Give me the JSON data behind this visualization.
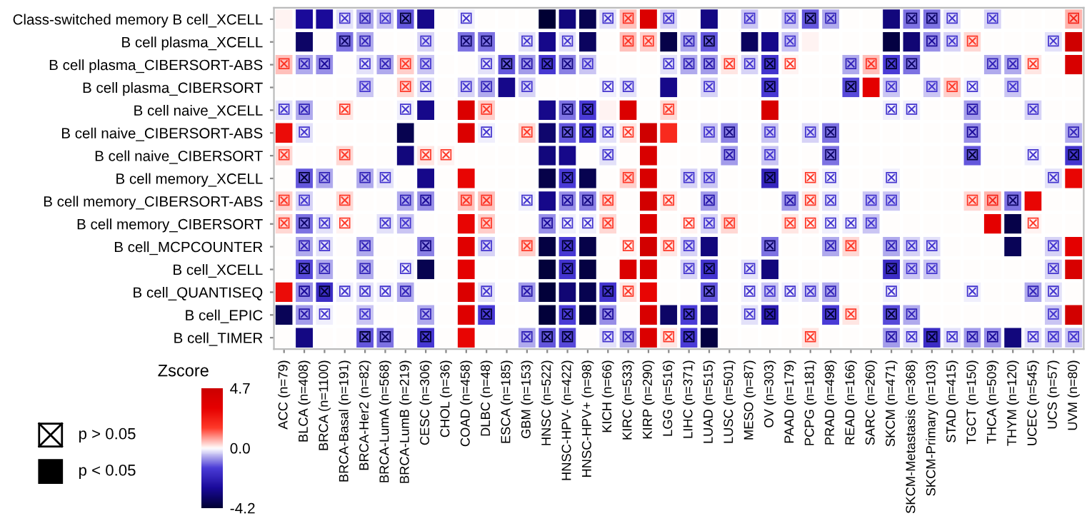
{
  "chart_data": {
    "type": "heatmap",
    "categories": [
      "ACC (n=79)",
      "BLCA (n=408)",
      "BRCA (n=1100)",
      "BRCA-Basal (n=191)",
      "BRCA-Her2 (n=82)",
      "BRCA-LumA (n=568)",
      "BRCA-LumB (n=219)",
      "CESC (n=306)",
      "CHOL (n=36)",
      "COAD (n=458)",
      "DLBC (n=48)",
      "ESCA (n=185)",
      "GBM (n=153)",
      "HNSC (n=522)",
      "HNSC-HPV- (n=422)",
      "HNSC-HPV+ (n=98)",
      "KICH (n=66)",
      "KIRC (n=533)",
      "KIRP (n=290)",
      "LGG (n=516)",
      "LIHC (n=371)",
      "LUAD (n=515)",
      "LUSC (n=501)",
      "MESO (n=87)",
      "OV (n=303)",
      "PAAD (n=179)",
      "PCPG (n=181)",
      "PRAD (n=498)",
      "READ (n=166)",
      "SARC (n=260)",
      "SKCM (n=471)",
      "SKCM-Metastasis (n=368)",
      "SKCM-Primary (n=103)",
      "STAD (n=415)",
      "TGCT (n=150)",
      "THCA (n=509)",
      "THYM (n=120)",
      "UCEC (n=545)",
      "UCS (n=57)",
      "UVM (n=80)"
    ],
    "y_categories": [
      "Class-switched memory B cell_XCELL",
      "B cell plasma_XCELL",
      "B cell plasma_CIBERSORT-ABS",
      "B cell plasma_CIBERSORT",
      "B cell naive_XCELL",
      "B cell naive_CIBERSORT-ABS",
      "B cell naive_CIBERSORT",
      "B cell memory_XCELL",
      "B cell memory_CIBERSORT-ABS",
      "B cell memory_CIBERSORT",
      "B cell_MCPCOUNTER",
      "B cell_XCELL",
      "B cell_QUANTISEQ",
      "B cell_EPIC",
      "B cell_TIMER"
    ],
    "cells": [
      [
        0.1,
        -2.8,
        -2.8,
        -0.2,
        -0.6,
        -0.4,
        -1.2,
        -3.0,
        0,
        -0.1,
        0,
        0,
        0,
        -4.2,
        -3.2,
        -3.8,
        -0.2,
        0.5,
        3.8,
        -0.3,
        0,
        -3.1,
        0,
        -0.4,
        0,
        -0.4,
        -1.2,
        -0.6,
        0,
        0,
        -3.2,
        -1.0,
        -1.0,
        -0.2,
        0,
        -0.3,
        0,
        0,
        0,
        0.6
      ],
      [
        0,
        -3.5,
        0,
        -1.0,
        -0.6,
        0,
        0,
        -0.3,
        0,
        -1.0,
        -1.0,
        0,
        -0.2,
        -3.0,
        -0.2,
        -3.6,
        0,
        0.5,
        0.4,
        -3.9,
        -0.6,
        -1.2,
        0,
        -3.6,
        -3.0,
        -0.4,
        0.1,
        0,
        0,
        0,
        -4.0,
        -3.3,
        -0.8,
        -0.3,
        0.3,
        0,
        0,
        0,
        -0.2,
        4.5
      ],
      [
        0.5,
        -0.6,
        -0.8,
        0,
        -0.2,
        -0.6,
        0.4,
        -0.4,
        0,
        0,
        -0.2,
        -1.2,
        -0.7,
        -1.5,
        -0.9,
        -0.4,
        0,
        0,
        0,
        -0.2,
        -0.6,
        -0.7,
        0.2,
        -0.3,
        -1.6,
        0.1,
        0,
        0,
        -0.6,
        0.5,
        -1.4,
        -1.0,
        0,
        0,
        0,
        -0.6,
        -0.6,
        0.2,
        0,
        4.0
      ],
      [
        0,
        0,
        0,
        0,
        -0.4,
        0,
        0.3,
        -0.2,
        0,
        -0.3,
        -0.6,
        -3.0,
        -0.3,
        0,
        0,
        0,
        -0.1,
        -0.2,
        0,
        -3.0,
        0,
        -0.3,
        0,
        0,
        -1.5,
        0,
        0,
        0,
        -1.3,
        3.2,
        -0.4,
        0,
        -0.4,
        0.4,
        -0.1,
        0,
        -0.4,
        0,
        0,
        0
      ],
      [
        -0.2,
        -0.6,
        0,
        0.2,
        0,
        0,
        -0.1,
        -3.0,
        0,
        3.8,
        0.4,
        0,
        0,
        -3.0,
        -1.0,
        -1.4,
        0.1,
        3.8,
        0,
        0.3,
        0,
        0,
        0,
        0,
        4.0,
        0,
        0,
        0,
        0,
        0,
        -0.1,
        -0.1,
        0,
        0,
        -0.7,
        0,
        0,
        -0.3,
        0,
        0
      ],
      [
        2.8,
        -0.2,
        0,
        0,
        0,
        0,
        -3.8,
        0,
        0,
        3.8,
        -0.1,
        0,
        0.3,
        -3.4,
        -1.2,
        -1.5,
        -0.2,
        0.2,
        4.5,
        2.0,
        0,
        -0.4,
        -0.9,
        0,
        -0.4,
        0,
        -0.3,
        -1.0,
        0,
        0,
        0,
        0,
        0,
        0,
        -0.8,
        0,
        0,
        0,
        0,
        -0.6
      ],
      [
        0.3,
        0,
        0,
        0.3,
        0,
        0,
        -3.2,
        0.2,
        0.1,
        0,
        0,
        0,
        0,
        -3.2,
        -3.0,
        0,
        -0.2,
        0,
        3.9,
        0,
        0,
        0,
        -0.7,
        0,
        -0.4,
        0,
        0,
        -1.0,
        0,
        0,
        0,
        0,
        0,
        0,
        -1.2,
        0,
        0,
        -0.1,
        0,
        -1.6
      ],
      [
        0,
        -1.2,
        -0.6,
        0,
        -0.6,
        -0.2,
        0,
        -3.0,
        0,
        3.0,
        0,
        0,
        0,
        -3.9,
        -1.4,
        -3.8,
        0,
        0.4,
        4.0,
        0,
        -0.3,
        -0.4,
        0,
        0,
        -2.0,
        0,
        0.1,
        -0.1,
        0,
        0,
        -0.1,
        0,
        0,
        0,
        0,
        0,
        0,
        0,
        -0.2,
        3.0
      ],
      [
        0.4,
        -0.3,
        0,
        0.3,
        0,
        0,
        -0.6,
        -0.8,
        0,
        0.5,
        0.5,
        0,
        -0.1,
        -3.0,
        -0.8,
        -0.9,
        0.3,
        0,
        4.3,
        0.2,
        0,
        -0.7,
        0,
        0,
        0,
        -0.7,
        0.2,
        -0.2,
        0,
        -0.4,
        -0.4,
        0,
        0,
        0,
        0.3,
        0.6,
        -1.0,
        3.0,
        0,
        0
      ],
      [
        0.3,
        -1.0,
        -0.2,
        0.1,
        0,
        -0.2,
        -0.4,
        0,
        0,
        3.0,
        0.4,
        0,
        0,
        -0.8,
        -0.1,
        -0.1,
        0.3,
        0,
        3.8,
        0,
        0.1,
        -0.3,
        0.3,
        0,
        0,
        0.2,
        0.1,
        -0.1,
        -0.1,
        -0.4,
        0,
        0,
        0,
        0,
        0,
        3.2,
        -3.9,
        0.1,
        0,
        0
      ],
      [
        0,
        -0.6,
        -0.2,
        0,
        -0.6,
        0,
        0,
        -0.9,
        0,
        3.5,
        -0.3,
        0,
        0.4,
        -4.0,
        -1.5,
        -3.9,
        0,
        0.1,
        4.3,
        0.2,
        -0.3,
        -3.2,
        0,
        0,
        -1.0,
        0,
        0,
        -0.6,
        0.3,
        0,
        -0.6,
        -0.3,
        -0.2,
        0,
        0,
        0,
        -3.7,
        0,
        -0.3,
        3.2
      ],
      [
        0,
        -1.3,
        -0.6,
        0,
        -0.6,
        0,
        -0.1,
        -3.8,
        0,
        3.2,
        0,
        0,
        0,
        -4.1,
        -1.6,
        -4.0,
        0,
        3.8,
        4.0,
        0,
        -0.3,
        -1.6,
        0,
        -0.2,
        -3.2,
        0,
        0,
        0,
        0,
        0,
        -1.8,
        -0.4,
        -0.4,
        0,
        0,
        0,
        0,
        0,
        -0.3,
        4.0
      ],
      [
        2.8,
        -0.8,
        -1.8,
        -0.1,
        -0.2,
        -0.1,
        -0.6,
        0,
        0,
        3.8,
        -0.2,
        0,
        -0.7,
        -4.1,
        -3.3,
        -3.8,
        -1.6,
        0.2,
        3.0,
        0,
        0,
        -1.2,
        0,
        -0.1,
        -0.4,
        -0.1,
        -0.3,
        -0.6,
        0,
        0,
        -0.1,
        0,
        0,
        0,
        -0.1,
        0,
        0,
        -0.6,
        -0.2,
        0
      ],
      [
        -3.7,
        -0.7,
        -0.1,
        0,
        -0.4,
        0,
        0,
        -0.6,
        0,
        3.6,
        -1.4,
        0,
        0,
        -4.1,
        -1.4,
        -4.0,
        -0.8,
        0,
        4.0,
        -3.5,
        -1.4,
        -3.4,
        0,
        -0.2,
        -2.2,
        0,
        0,
        -1.4,
        0.2,
        0,
        -1.3,
        -0.6,
        0,
        0,
        0,
        0,
        0,
        0,
        -0.4,
        4.3
      ],
      [
        0,
        -3.1,
        0,
        0,
        -1.2,
        -1.0,
        0,
        -1.5,
        0,
        3.0,
        0,
        0,
        -0.6,
        -1.2,
        -1.3,
        0,
        -0.2,
        -0.6,
        3.8,
        0.2,
        -1.4,
        -4.0,
        0,
        0,
        0,
        0,
        0.2,
        0,
        0,
        0,
        -0.7,
        -0.2,
        -1.8,
        -0.2,
        -0.7,
        -0.8,
        -3.2,
        -0.2,
        -0.4,
        -0.4
      ]
    ],
    "cell_labels": [
      [
        null,
        null,
        null,
        "⊠",
        "⊠",
        "⊠",
        "⊠",
        null,
        null,
        "⊠",
        null,
        null,
        null,
        null,
        null,
        null,
        "⊠",
        "⊠",
        null,
        "⊠",
        null,
        null,
        null,
        "⊠",
        null,
        "⊠",
        "⊠",
        "⊠",
        null,
        null,
        null,
        "⊠",
        "⊠",
        "⊠",
        null,
        "⊠",
        null,
        null,
        null,
        "⊠"
      ],
      [
        null,
        null,
        null,
        "⊠",
        "⊠",
        null,
        null,
        "⊠",
        null,
        "⊠",
        "⊠",
        null,
        "⊠",
        null,
        "⊠",
        null,
        null,
        "⊠",
        "⊠",
        null,
        "⊠",
        "⊠",
        null,
        null,
        null,
        "⊠",
        null,
        null,
        null,
        null,
        null,
        null,
        "⊠",
        "⊠",
        "⊠",
        null,
        null,
        null,
        "⊠",
        null
      ],
      [
        "⊠",
        "⊠",
        "⊠",
        null,
        "⊠",
        "⊠",
        "⊠",
        "⊠",
        null,
        null,
        "⊠",
        "⊠",
        "⊠",
        "⊠",
        "⊠",
        "⊠",
        null,
        null,
        null,
        "⊠",
        "⊠",
        "⊠",
        "⊠",
        "⊠",
        "⊠",
        "⊠",
        null,
        null,
        "⊠",
        "⊠",
        "⊠",
        "⊠",
        null,
        null,
        null,
        "⊠",
        "⊠",
        "⊠",
        null,
        null
      ],
      [
        null,
        null,
        null,
        null,
        "⊠",
        null,
        "⊠",
        "⊠",
        null,
        "⊠",
        "⊠",
        null,
        "⊠",
        null,
        null,
        null,
        "⊠",
        "⊠",
        null,
        null,
        null,
        "⊠",
        null,
        null,
        "⊠",
        null,
        null,
        null,
        "⊠",
        null,
        "⊠",
        null,
        "⊠",
        "⊠",
        "⊠",
        null,
        "⊠",
        null,
        null,
        null
      ],
      [
        "⊠",
        "⊠",
        null,
        "⊠",
        null,
        null,
        "⊠",
        null,
        null,
        null,
        "⊠",
        null,
        null,
        null,
        "⊠",
        "⊠",
        null,
        null,
        null,
        "⊠",
        null,
        null,
        null,
        null,
        null,
        null,
        null,
        null,
        null,
        null,
        "⊠",
        "⊠",
        null,
        null,
        "⊠",
        null,
        null,
        "⊠",
        null,
        null
      ],
      [
        null,
        "⊠",
        null,
        null,
        null,
        null,
        null,
        null,
        null,
        null,
        "⊠",
        null,
        "⊠",
        null,
        "⊠",
        "⊠",
        "⊠",
        "⊠",
        null,
        null,
        null,
        "⊠",
        "⊠",
        null,
        "⊠",
        null,
        "⊠",
        "⊠",
        null,
        null,
        null,
        null,
        null,
        null,
        "⊠",
        null,
        null,
        null,
        null,
        "⊠"
      ],
      [
        "⊠",
        null,
        null,
        "⊠",
        null,
        null,
        null,
        "⊠",
        "⊠",
        null,
        null,
        null,
        null,
        null,
        null,
        null,
        "⊠",
        null,
        null,
        null,
        null,
        null,
        "⊠",
        null,
        "⊠",
        null,
        null,
        "⊠",
        null,
        null,
        null,
        null,
        null,
        null,
        "⊠",
        null,
        null,
        "⊠",
        null,
        "⊠"
      ],
      [
        null,
        "⊠",
        "⊠",
        null,
        "⊠",
        "⊠",
        null,
        null,
        null,
        null,
        null,
        null,
        null,
        null,
        "⊠",
        null,
        null,
        "⊠",
        null,
        null,
        "⊠",
        "⊠",
        null,
        null,
        "⊠",
        null,
        "⊠",
        "⊠",
        null,
        null,
        "⊠",
        null,
        null,
        null,
        null,
        null,
        null,
        null,
        "⊠",
        null
      ],
      [
        "⊠",
        "⊠",
        null,
        "⊠",
        null,
        null,
        "⊠",
        "⊠",
        null,
        "⊠",
        "⊠",
        null,
        "⊠",
        null,
        "⊠",
        "⊠",
        "⊠",
        null,
        null,
        "⊠",
        null,
        "⊠",
        null,
        null,
        null,
        "⊠",
        "⊠",
        "⊠",
        null,
        "⊠",
        "⊠",
        null,
        null,
        null,
        "⊠",
        "⊠",
        "⊠",
        null,
        null,
        null
      ],
      [
        "⊠",
        "⊠",
        "⊠",
        "⊠",
        null,
        "⊠",
        "⊠",
        null,
        null,
        null,
        "⊠",
        null,
        null,
        "⊠",
        "⊠",
        "⊠",
        "⊠",
        null,
        null,
        null,
        "⊠",
        "⊠",
        "⊠",
        null,
        null,
        "⊠",
        "⊠",
        "⊠",
        "⊠",
        "⊠",
        null,
        null,
        null,
        null,
        null,
        null,
        null,
        "⊠",
        null,
        null
      ],
      [
        null,
        "⊠",
        "⊠",
        null,
        "⊠",
        null,
        null,
        "⊠",
        null,
        null,
        "⊠",
        null,
        "⊠",
        null,
        "⊠",
        null,
        null,
        "⊠",
        null,
        "⊠",
        "⊠",
        null,
        null,
        null,
        "⊠",
        null,
        null,
        "⊠",
        "⊠",
        null,
        "⊠",
        "⊠",
        "⊠",
        null,
        null,
        null,
        null,
        null,
        "⊠",
        null
      ],
      [
        null,
        "⊠",
        "⊠",
        null,
        "⊠",
        null,
        "⊠",
        null,
        null,
        null,
        null,
        null,
        null,
        null,
        "⊠",
        null,
        null,
        null,
        null,
        null,
        "⊠",
        "⊠",
        null,
        "⊠",
        null,
        null,
        null,
        null,
        null,
        null,
        "⊠",
        "⊠",
        "⊠",
        null,
        null,
        null,
        null,
        null,
        "⊠",
        null
      ],
      [
        null,
        "⊠",
        "⊠",
        "⊠",
        "⊠",
        "⊠",
        "⊠",
        null,
        null,
        null,
        "⊠",
        null,
        "⊠",
        null,
        null,
        null,
        "⊠",
        "⊠",
        null,
        null,
        null,
        "⊠",
        null,
        "⊠",
        "⊠",
        "⊠",
        "⊠",
        "⊠",
        null,
        null,
        "⊠",
        null,
        null,
        null,
        "⊠",
        null,
        null,
        "⊠",
        "⊠",
        null
      ],
      [
        null,
        "⊠",
        "⊠",
        null,
        "⊠",
        null,
        null,
        "⊠",
        null,
        null,
        "⊠",
        null,
        null,
        null,
        "⊠",
        null,
        "⊠",
        null,
        null,
        null,
        "⊠",
        null,
        null,
        "⊠",
        "⊠",
        null,
        null,
        "⊠",
        "⊠",
        null,
        "⊠",
        "⊠",
        null,
        null,
        null,
        null,
        null,
        null,
        "⊠",
        null
      ],
      [
        null,
        null,
        null,
        null,
        "⊠",
        "⊠",
        null,
        "⊠",
        null,
        null,
        null,
        null,
        "⊠",
        "⊠",
        "⊠",
        null,
        "⊠",
        "⊠",
        null,
        "⊠",
        "⊠",
        null,
        null,
        null,
        null,
        null,
        "⊠",
        null,
        null,
        null,
        "⊠",
        "⊠",
        "⊠",
        "⊠",
        "⊠",
        "⊠",
        null,
        "⊠",
        "⊠",
        "⊠"
      ]
    ],
    "clabel": "Zscore",
    "clim": [
      -4.2,
      4.7
    ],
    "cticks": [
      {
        "value": 4.7,
        "label": "4.7"
      },
      {
        "value": 0.0,
        "label": "0.0"
      },
      {
        "value": -4.2,
        "label": "-4.2"
      }
    ],
    "annotations": [
      "p > 0.05",
      "p < 0.05"
    ],
    "grid": false
  }
}
